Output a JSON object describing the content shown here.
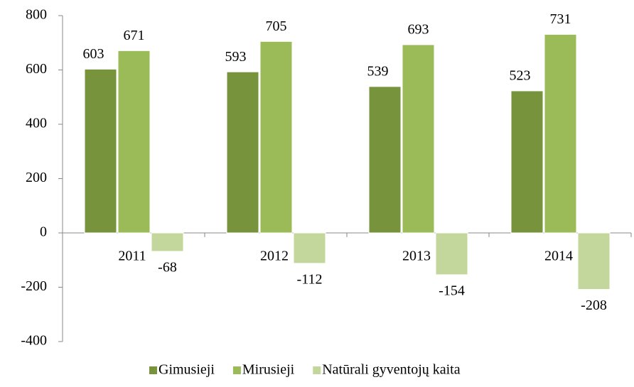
{
  "chart_data": {
    "type": "bar",
    "categories": [
      "2011",
      "2012",
      "2013",
      "2014"
    ],
    "series": [
      {
        "name": "Gimusieji",
        "color": "#77933c",
        "values": [
          603,
          593,
          539,
          523
        ]
      },
      {
        "name": "Mirusieji",
        "color": "#9bbb59",
        "values": [
          671,
          705,
          693,
          731
        ]
      },
      {
        "name": "Natūrali gyventojų kaita",
        "color": "#c3d69b",
        "values": [
          -68,
          -112,
          -154,
          -208
        ]
      }
    ],
    "ylim": [
      -400,
      800
    ],
    "yticks": [
      -400,
      -200,
      0,
      200,
      400,
      600,
      800
    ],
    "grid": false,
    "legend": "bottom"
  }
}
